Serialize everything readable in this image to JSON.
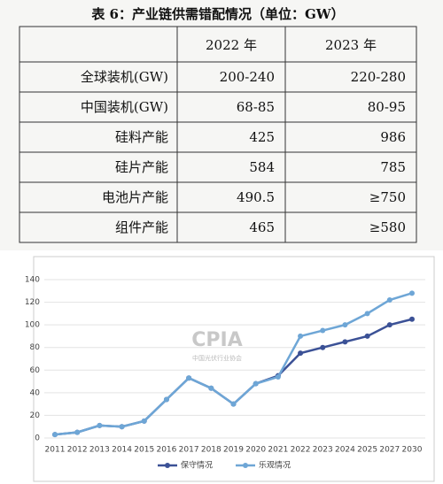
{
  "title": "表 6：产业链供需错配情况（单位：GW）",
  "table": {
    "columns": [
      "2022 年",
      "2023 年"
    ],
    "rows": [
      [
        "全球装机(GW)",
        "200-240",
        "220-280"
      ],
      [
        "中国装机(GW)",
        "68-85",
        "80-95"
      ],
      [
        "硅料产能",
        "425",
        "986"
      ],
      [
        "硅片产能",
        "584",
        "785"
      ],
      [
        "电池片产能",
        "490.5",
        "≥750"
      ],
      [
        "组件产能",
        "465",
        "≥580"
      ]
    ]
  },
  "chart_data": {
    "type": "line",
    "watermark": [
      "CPIA",
      "中国光伏行业协会"
    ],
    "categories": [
      "2011",
      "2012",
      "2013",
      "2014",
      "2015",
      "2016",
      "2017",
      "2018",
      "2019",
      "2020",
      "2021",
      "2022",
      "2023",
      "2024",
      "2025",
      "2027",
      "2030"
    ],
    "series": [
      {
        "name": "保守情况",
        "color": "#3b5196",
        "values": [
          3,
          5,
          11,
          10,
          15,
          34,
          53,
          44,
          30,
          48,
          55,
          75,
          80,
          85,
          90,
          100,
          105
        ]
      },
      {
        "name": "乐观情况",
        "color": "#6ea6d6",
        "values": [
          3,
          5,
          11,
          10,
          15,
          34,
          53,
          44,
          30,
          48,
          54,
          90,
          95,
          100,
          110,
          122,
          128
        ]
      }
    ],
    "ylim": [
      0,
      140
    ],
    "yticks": [
      0,
      20,
      40,
      60,
      80,
      100,
      120,
      140
    ],
    "grid": true,
    "legend": "bottom"
  }
}
